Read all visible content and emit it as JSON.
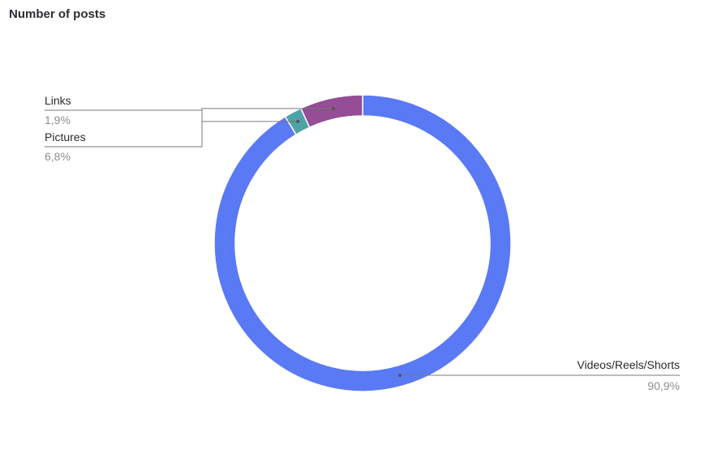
{
  "chart_data": {
    "type": "pie",
    "style": "donut",
    "title": "Number of posts",
    "slices": [
      {
        "label": "Videos/Reels/Shorts",
        "value_text": "90,9%",
        "value": 90.9,
        "color": "#5a79f5"
      },
      {
        "label": "Links",
        "value_text": "1,9%",
        "value": 1.9,
        "color": "#4fa3a8"
      },
      {
        "label": "Pictures",
        "value_text": "6,8%",
        "value": 6.8,
        "color": "#944d96"
      }
    ],
    "legend": "none"
  }
}
